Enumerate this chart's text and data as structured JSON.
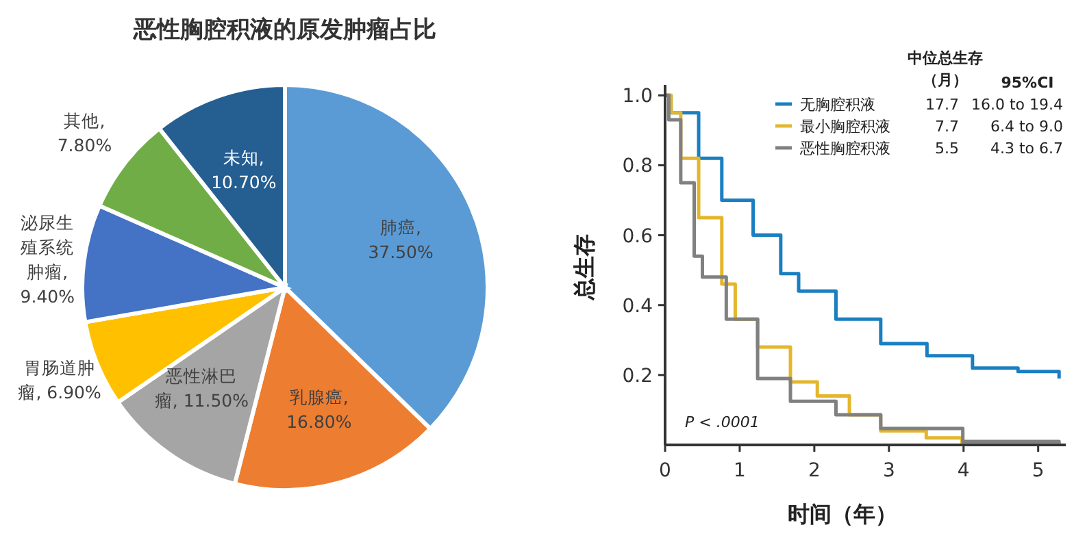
{
  "chart_data": [
    {
      "type": "pie",
      "title": "恶性胸腔积液的原发肿瘤占比",
      "categories": [
        "肺癌",
        "乳腺癌",
        "恶性淋巴瘤",
        "胃肠道肿瘤",
        "泌尿生殖系统肿瘤",
        "其他",
        "未知"
      ],
      "values": [
        37.5,
        16.8,
        11.5,
        6.9,
        9.4,
        7.8,
        10.7
      ],
      "value_labels": [
        ", 37.50%",
        ", 16.80%",
        ", 11.50%",
        ", 6.90%",
        ", 9.40%",
        ", 7.80%",
        ", 10.70%"
      ],
      "colors": [
        "#5b9bd5",
        "#ed7d31",
        "#a5a5a5",
        "#ffc000",
        "#4472c4",
        "#70ad47",
        "#255e91"
      ]
    },
    {
      "type": "step",
      "xlabel": "时间（年）",
      "ylabel": "总生存",
      "legend": "top",
      "grid": false,
      "marker": "none",
      "line_style": "solid",
      "xlim": [
        0,
        5.37
      ],
      "ylim": [
        0,
        1.03
      ],
      "xticks": [
        0,
        1,
        2,
        3,
        4,
        5
      ],
      "yticks": [
        0.2,
        0.4,
        0.6,
        0.8,
        {
          "value": 1,
          "label": "1.0"
        }
      ],
      "annotations": [
        "中位总生存",
        "（月）",
        "95%CI",
        "17.7",
        "16.0 to 19.4",
        "7.7",
        "6.4 to 9.0",
        "5.5",
        "4.3  to 6.7",
        "P < .0001"
      ],
      "series": [
        {
          "name": "无胸腔积液",
          "color": "#1a7fc1",
          "x": [
            0,
            0.08,
            0.45,
            0.76,
            1.18,
            1.55,
            1.79,
            2.29,
            2.89,
            3.51,
            4.12,
            4.73,
            5.28
          ],
          "values": [
            1,
            0.95,
            0.82,
            0.7,
            0.6,
            0.49,
            0.44,
            0.36,
            0.29,
            0.255,
            0.22,
            0.21,
            0.19
          ]
        },
        {
          "name": "最小胸腔积液",
          "color": "#e3b62c",
          "x": [
            0,
            0.08,
            0.21,
            0.45,
            0.76,
            0.94,
            1.24,
            1.68,
            2.04,
            2.47,
            2.89,
            3.5,
            3.98,
            5.28
          ],
          "values": [
            1,
            0.95,
            0.82,
            0.65,
            0.46,
            0.36,
            0.28,
            0.18,
            0.14,
            0.086,
            0.04,
            0.02,
            0.005,
            0
          ]
        },
        {
          "name": "恶性胸腔积液",
          "color": "#808080",
          "x": [
            0,
            0.05,
            0.21,
            0.39,
            0.5,
            0.82,
            1.24,
            1.68,
            2.29,
            2.89,
            3.99,
            5.28
          ],
          "values": [
            1,
            0.93,
            0.75,
            0.54,
            0.48,
            0.36,
            0.19,
            0.125,
            0.086,
            0.047,
            0.01,
            0.005
          ]
        }
      ]
    }
  ]
}
